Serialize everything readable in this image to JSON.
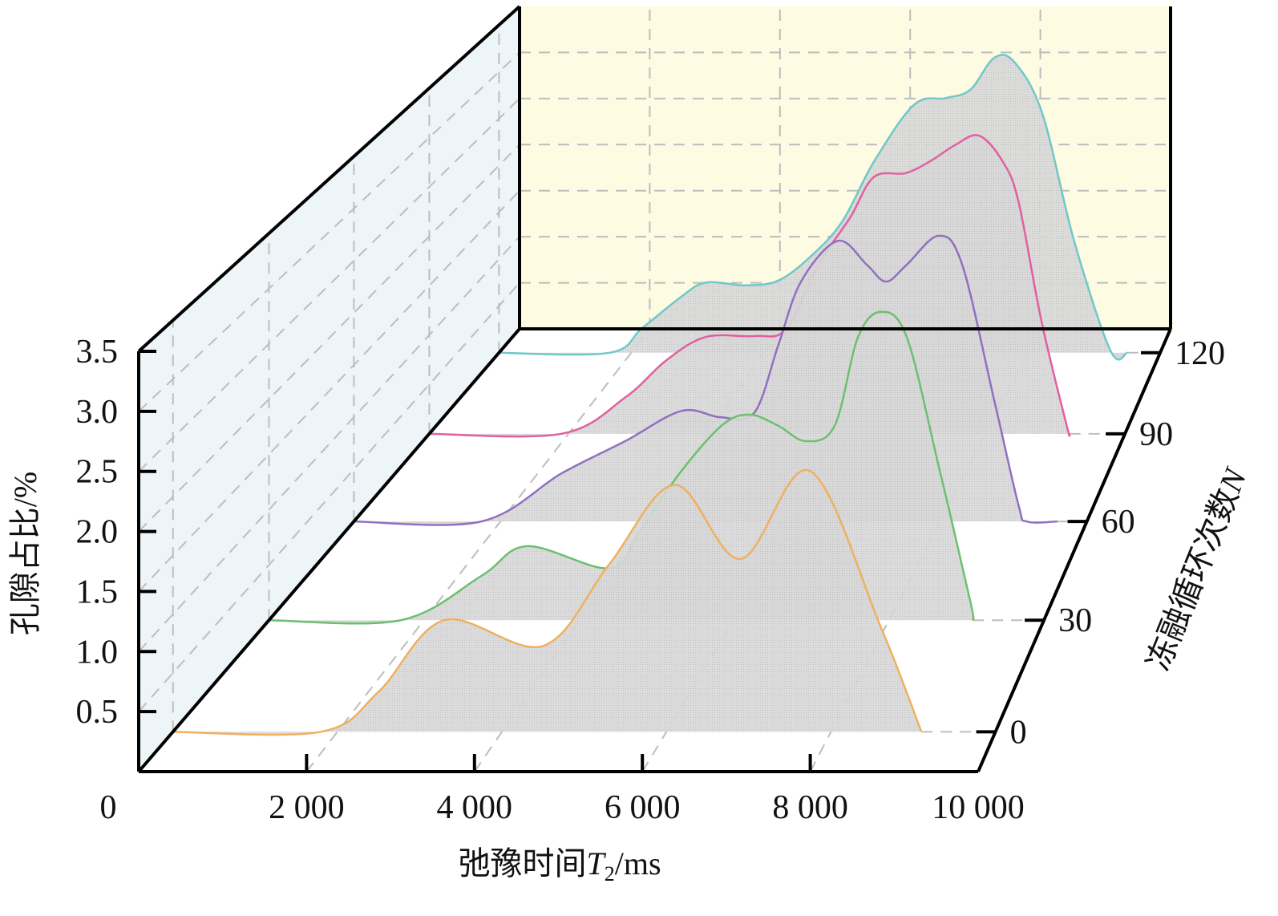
{
  "chart_data": {
    "type": "area",
    "style": "3d-waterfall",
    "xlabel": "弛豫时间T2/ms",
    "xlabel_parts": {
      "prefix": "弛豫时间",
      "var": "T",
      "sub": "2",
      "suffix": "/ms"
    },
    "ylabel": "孔隙占比/%",
    "zlabel": "冻融循环次数N",
    "zlabel_parts": {
      "prefix": "冻融循环次数",
      "var": "N"
    },
    "xlim": [
      0,
      10000
    ],
    "ylim": [
      0,
      3.5
    ],
    "x_ticks": [
      "0",
      "2 000",
      "4 000",
      "6 000",
      "8 000",
      "10 000"
    ],
    "x_tick_values": [
      0,
      2000,
      4000,
      6000,
      8000,
      10000
    ],
    "y_ticks": [
      "0.5",
      "1.0",
      "1.5",
      "2.0",
      "2.5",
      "3.0",
      "3.5"
    ],
    "y_tick_values": [
      0.5,
      1.0,
      1.5,
      2.0,
      2.5,
      3.0,
      3.5
    ],
    "z_ticks": [
      "0",
      "30",
      "60",
      "90",
      "120"
    ],
    "grid": true,
    "colors": {
      "left_wall": "#edf5f9",
      "back_wall": "#fdfbe2",
      "fill": "#d4d4d4",
      "grid": "#bdbdbd"
    },
    "series": [
      {
        "z": 0,
        "color": "#f0b060",
        "points": [
          [
            0,
            0
          ],
          [
            1800,
            0
          ],
          [
            2500,
            0.34
          ],
          [
            3300,
            0.95
          ],
          [
            4500,
            0.73
          ],
          [
            5300,
            1.42
          ],
          [
            6100,
            2.1
          ],
          [
            6900,
            1.47
          ],
          [
            7740,
            2.22
          ],
          [
            8600,
            0.9
          ],
          [
            9100,
            0
          ]
        ]
      },
      {
        "z": 30,
        "color": "#6cc070",
        "points": [
          [
            0,
            0
          ],
          [
            1700,
            0
          ],
          [
            2740,
            0.4
          ],
          [
            3330,
            0.67
          ],
          [
            4400,
            0.47
          ],
          [
            4800,
            0.82
          ],
          [
            5300,
            1.33
          ],
          [
            5840,
            1.76
          ],
          [
            6200,
            1.86
          ],
          [
            6570,
            1.76
          ],
          [
            6930,
            1.62
          ],
          [
            7300,
            1.76
          ],
          [
            7600,
            2.56
          ],
          [
            7900,
            2.79
          ],
          [
            8230,
            2.56
          ],
          [
            8640,
            1.4
          ],
          [
            9050,
            0.17
          ],
          [
            9080,
            0
          ]
        ]
      },
      {
        "z": 60,
        "color": "#9070c0",
        "points": [
          [
            0,
            0
          ],
          [
            1740,
            0
          ],
          [
            2830,
            0.46
          ],
          [
            3700,
            0.77
          ],
          [
            4470,
            1.06
          ],
          [
            5000,
            1.0
          ],
          [
            5460,
            1.04
          ],
          [
            5790,
            1.69
          ],
          [
            6100,
            2.3
          ],
          [
            6600,
            2.69
          ],
          [
            7000,
            2.46
          ],
          [
            7260,
            2.3
          ],
          [
            7540,
            2.46
          ],
          [
            7980,
            2.74
          ],
          [
            8300,
            2.46
          ],
          [
            8740,
            1.15
          ],
          [
            9070,
            0.15
          ],
          [
            9180,
            0
          ],
          [
            9600,
            0
          ]
        ]
      },
      {
        "z": 90,
        "color": "#e060a0",
        "points": [
          [
            0,
            0
          ],
          [
            1900,
            0
          ],
          [
            2820,
            0.37
          ],
          [
            3400,
            0.74
          ],
          [
            3970,
            0.98
          ],
          [
            4670,
            0.99
          ],
          [
            5130,
            1.06
          ],
          [
            5590,
            1.71
          ],
          [
            6050,
            2.19
          ],
          [
            6390,
            2.6
          ],
          [
            6850,
            2.64
          ],
          [
            7200,
            2.76
          ],
          [
            7550,
            2.92
          ],
          [
            7900,
            3.02
          ],
          [
            8240,
            2.76
          ],
          [
            8470,
            2.35
          ],
          [
            8800,
            1.14
          ],
          [
            9160,
            0.09
          ],
          [
            9200,
            0
          ]
        ]
      },
      {
        "z": 120,
        "color": "#70c8c8",
        "points": [
          [
            0,
            0
          ],
          [
            1670,
            0
          ],
          [
            2160,
            0.26
          ],
          [
            2760,
            0.6
          ],
          [
            3130,
            0.75
          ],
          [
            3730,
            0.72
          ],
          [
            4220,
            0.77
          ],
          [
            4700,
            1.02
          ],
          [
            5190,
            1.4
          ],
          [
            5670,
            2.04
          ],
          [
            6280,
            2.65
          ],
          [
            6760,
            2.72
          ],
          [
            7130,
            2.81
          ],
          [
            7490,
            3.15
          ],
          [
            7800,
            3.1
          ],
          [
            8220,
            2.55
          ],
          [
            8700,
            1.19
          ],
          [
            9250,
            0.02
          ],
          [
            9500,
            0
          ]
        ]
      }
    ]
  }
}
